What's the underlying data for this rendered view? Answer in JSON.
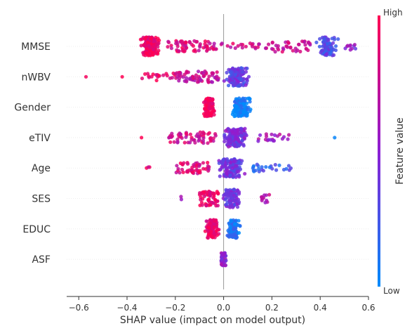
{
  "chart_data": {
    "type": "scatter",
    "xlabel": "SHAP value (impact on model output)",
    "xlim": [
      -0.65,
      0.6
    ],
    "xticks": [
      -0.6,
      -0.4,
      -0.2,
      0.0,
      0.2,
      0.4,
      0.6
    ],
    "xtick_labels": [
      "−0.6",
      "−0.4",
      "−0.2",
      "0.0",
      "0.2",
      "0.4",
      "0.6"
    ],
    "features": [
      "MMSE",
      "nWBV",
      "Gender",
      "eTIV",
      "Age",
      "SES",
      "EDUC",
      "ASF"
    ],
    "colorbar": {
      "label": "Feature value",
      "high_label": "High",
      "low_label": "Low",
      "high_color": "#ff0052",
      "low_color": "#008bfb"
    },
    "series": [
      {
        "feature": "MMSE",
        "segments": [
          {
            "from": -0.37,
            "to": -0.24,
            "count": 200,
            "feature_value": 0.95,
            "spread": 1.0,
            "center": -0.31
          },
          {
            "from": -0.24,
            "to": -0.05,
            "count": 60,
            "feature_value": 0.85,
            "spread": 0.6
          },
          {
            "from": -0.05,
            "to": 0.2,
            "count": 30,
            "feature_value": 0.8,
            "spread": 0.35
          },
          {
            "from": 0.2,
            "to": 0.36,
            "count": 40,
            "feature_value": 0.75,
            "spread": 0.6
          },
          {
            "from": 0.36,
            "to": 0.5,
            "count": 90,
            "feature_value": 0.3,
            "spread": 1.0,
            "center": 0.43
          },
          {
            "from": 0.5,
            "to": 0.55,
            "count": 10,
            "feature_value": 0.5,
            "spread": 0.4
          }
        ]
      },
      {
        "feature": "nWBV",
        "segments": [
          {
            "from": -0.57,
            "to": -0.57,
            "count": 1,
            "feature_value": 0.95,
            "spread": 0.0
          },
          {
            "from": -0.42,
            "to": -0.42,
            "count": 1,
            "feature_value": 0.95,
            "spread": 0.0
          },
          {
            "from": -0.34,
            "to": -0.2,
            "count": 20,
            "feature_value": 0.9,
            "spread": 0.4
          },
          {
            "from": -0.2,
            "to": -0.02,
            "count": 70,
            "feature_value": 0.75,
            "spread": 0.6
          },
          {
            "from": -0.02,
            "to": 0.14,
            "count": 150,
            "feature_value": 0.35,
            "spread": 1.0,
            "center": 0.03
          }
        ]
      },
      {
        "feature": "Gender",
        "segments": [
          {
            "from": -0.1,
            "to": -0.02,
            "count": 110,
            "feature_value": 0.97,
            "spread": 1.0,
            "center": -0.06
          },
          {
            "from": 0.02,
            "to": 0.14,
            "count": 130,
            "feature_value": 0.05,
            "spread": 1.0,
            "center": 0.05
          }
        ]
      },
      {
        "feature": "eTIV",
        "segments": [
          {
            "from": -0.34,
            "to": -0.34,
            "count": 1,
            "feature_value": 0.9,
            "spread": 0.0
          },
          {
            "from": -0.23,
            "to": -0.03,
            "count": 60,
            "feature_value": 0.8,
            "spread": 0.6
          },
          {
            "from": -0.03,
            "to": 0.14,
            "count": 150,
            "feature_value": 0.45,
            "spread": 1.0,
            "center": 0.02
          },
          {
            "from": 0.14,
            "to": 0.28,
            "count": 20,
            "feature_value": 0.6,
            "spread": 0.4
          },
          {
            "from": 0.46,
            "to": 0.46,
            "count": 1,
            "feature_value": 0.1,
            "spread": 0.0
          }
        ]
      },
      {
        "feature": "Age",
        "segments": [
          {
            "from": -0.32,
            "to": -0.3,
            "count": 3,
            "feature_value": 0.9,
            "spread": 0.2
          },
          {
            "from": -0.2,
            "to": -0.05,
            "count": 50,
            "feature_value": 0.85,
            "spread": 0.6
          },
          {
            "from": -0.05,
            "to": 0.12,
            "count": 150,
            "feature_value": 0.4,
            "spread": 1.0,
            "center": 0.01
          },
          {
            "from": 0.12,
            "to": 0.28,
            "count": 25,
            "feature_value": 0.2,
            "spread": 0.4
          }
        ]
      },
      {
        "feature": "SES",
        "segments": [
          {
            "from": -0.18,
            "to": -0.17,
            "count": 2,
            "feature_value": 0.5,
            "spread": 0.2
          },
          {
            "from": -0.1,
            "to": -0.02,
            "count": 60,
            "feature_value": 0.9,
            "spread": 0.8
          },
          {
            "from": -0.02,
            "to": 0.1,
            "count": 100,
            "feature_value": 0.4,
            "spread": 1.0,
            "center": 0.02
          },
          {
            "from": 0.15,
            "to": 0.19,
            "count": 12,
            "feature_value": 0.7,
            "spread": 0.5
          }
        ]
      },
      {
        "feature": "EDUC",
        "segments": [
          {
            "from": -0.1,
            "to": 0.0,
            "count": 100,
            "feature_value": 0.9,
            "spread": 1.0,
            "center": -0.04
          },
          {
            "from": 0.0,
            "to": 0.09,
            "count": 100,
            "feature_value": 0.1,
            "spread": 1.0,
            "center": 0.02
          }
        ]
      },
      {
        "feature": "ASF",
        "segments": [
          {
            "from": -0.01,
            "to": 0.01,
            "count": 40,
            "feature_value": 0.5,
            "spread": 0.7
          }
        ]
      }
    ]
  }
}
